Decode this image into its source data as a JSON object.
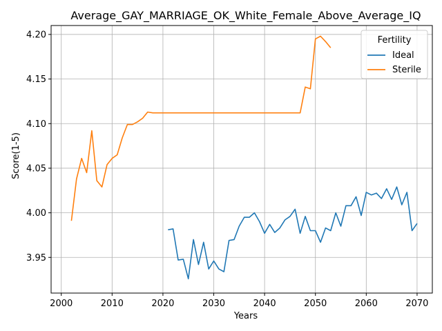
{
  "chart_data": {
    "type": "line",
    "title": "Average_GAY_MARRIAGE_OK_White_Female_Above_Average_IQ",
    "xlabel": "Years",
    "ylabel": "Score(1-5)",
    "xlim": [
      1998,
      2073
    ],
    "ylim": [
      3.91,
      4.21
    ],
    "xticks": [
      2000,
      2010,
      2020,
      2030,
      2040,
      2050,
      2060,
      2070
    ],
    "yticks": [
      3.95,
      4.0,
      4.05,
      4.1,
      4.15,
      4.2
    ],
    "grid": true,
    "legend": {
      "title": "Fertility",
      "placement": "top-right"
    },
    "series": [
      {
        "name": "Ideal",
        "color": "#1f77b4",
        "x": [
          2021,
          2022,
          2023,
          2024,
          2025,
          2026,
          2027,
          2028,
          2029,
          2030,
          2031,
          2032,
          2033,
          2034,
          2035,
          2036,
          2037,
          2038,
          2039,
          2040,
          2041,
          2042,
          2043,
          2044,
          2045,
          2046,
          2047,
          2048,
          2049,
          2050,
          2051,
          2052,
          2053,
          2054,
          2055,
          2056,
          2057,
          2058,
          2059,
          2060,
          2061,
          2062,
          2063,
          2064,
          2065,
          2066,
          2067,
          2068,
          2069,
          2070
        ],
        "y": [
          3.981,
          3.982,
          3.947,
          3.948,
          3.926,
          3.97,
          3.942,
          3.967,
          3.937,
          3.946,
          3.937,
          3.934,
          3.969,
          3.97,
          3.985,
          3.995,
          3.995,
          4.0,
          3.99,
          3.977,
          3.987,
          3.978,
          3.983,
          3.992,
          3.996,
          4.004,
          3.977,
          3.996,
          3.98,
          3.98,
          3.967,
          3.983,
          3.98,
          4.0,
          3.985,
          4.008,
          4.008,
          4.018,
          3.997,
          4.023,
          4.02,
          4.022,
          4.016,
          4.027,
          4.015,
          4.029,
          4.009,
          4.023,
          3.98,
          3.988
        ]
      },
      {
        "name": "Sterile",
        "color": "#ff7f0e",
        "x": [
          2002,
          2003,
          2004,
          2005,
          2006,
          2007,
          2008,
          2009,
          2010,
          2011,
          2012,
          2013,
          2014,
          2015,
          2016,
          2017,
          2018,
          2019,
          2020,
          2021,
          2022,
          2023,
          2024,
          2025,
          2026,
          2027,
          2028,
          2029,
          2030,
          2031,
          2032,
          2033,
          2034,
          2035,
          2036,
          2037,
          2038,
          2039,
          2040,
          2041,
          2042,
          2043,
          2044,
          2045,
          2046,
          2047,
          2048,
          2049,
          2050,
          2051,
          2052,
          2053
        ],
        "y": [
          3.991,
          4.038,
          4.061,
          4.045,
          4.092,
          4.036,
          4.029,
          4.054,
          4.061,
          4.065,
          4.084,
          4.099,
          4.099,
          4.102,
          4.106,
          4.113,
          4.112,
          4.112,
          4.112,
          4.112,
          4.112,
          4.112,
          4.112,
          4.112,
          4.112,
          4.112,
          4.112,
          4.112,
          4.112,
          4.112,
          4.112,
          4.112,
          4.112,
          4.112,
          4.112,
          4.112,
          4.112,
          4.112,
          4.112,
          4.112,
          4.112,
          4.112,
          4.112,
          4.112,
          4.112,
          4.112,
          4.141,
          4.139,
          4.195,
          4.198,
          4.192,
          4.185
        ]
      }
    ]
  }
}
